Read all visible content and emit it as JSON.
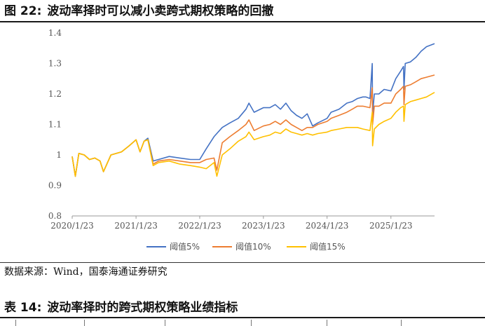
{
  "figure": {
    "number": "图 22:",
    "title": "波动率择时可以减小卖跨式期权策略的回撤"
  },
  "source": "数据来源：Wind，国泰海通证券研究",
  "table": {
    "number": "表 14:",
    "title": "波动率择时的跨式期权策略业绩指标"
  },
  "chart_data": {
    "type": "line",
    "x_ticks": [
      "2020/1/23",
      "2021/1/23",
      "2022/1/23",
      "2023/1/23",
      "2024/1/23",
      "2025/1/23"
    ],
    "y_ticks": [
      "0.8",
      "0.9",
      "1",
      "1.1",
      "1.2",
      "1.3",
      "1.4"
    ],
    "ylim": [
      0.8,
      1.4
    ],
    "xlim": [
      "2020/1/23",
      "2025/9/30"
    ],
    "grid": false,
    "legend_position": "bottom",
    "series": [
      {
        "name": "阈值5%",
        "color": "#4472C4",
        "points": [
          [
            "2020/1/23",
            0.995
          ],
          [
            "2020/2/10",
            0.93
          ],
          [
            "2020/3/1",
            1.005
          ],
          [
            "2020/4/1",
            1.0
          ],
          [
            "2020/5/1",
            0.985
          ],
          [
            "2020/6/1",
            0.99
          ],
          [
            "2020/7/1",
            0.98
          ],
          [
            "2020/7/20",
            0.945
          ],
          [
            "2020/9/1",
            1.0
          ],
          [
            "2020/11/1",
            1.01
          ],
          [
            "2020/12/15",
            1.03
          ],
          [
            "2021/1/23",
            1.05
          ],
          [
            "2021/2/15",
            1.01
          ],
          [
            "2021/3/10",
            1.045
          ],
          [
            "2021/4/1",
            1.055
          ],
          [
            "2021/5/1",
            0.98
          ],
          [
            "2021/6/1",
            0.985
          ],
          [
            "2021/8/1",
            0.995
          ],
          [
            "2021/10/1",
            0.99
          ],
          [
            "2021/12/1",
            0.985
          ],
          [
            "2022/1/23",
            0.985
          ],
          [
            "2022/3/1",
            1.02
          ],
          [
            "2022/4/15",
            1.06
          ],
          [
            "2022/6/1",
            1.09
          ],
          [
            "2022/7/15",
            1.105
          ],
          [
            "2022/9/1",
            1.12
          ],
          [
            "2022/10/15",
            1.15
          ],
          [
            "2022/11/1",
            1.17
          ],
          [
            "2022/12/1",
            1.14
          ],
          [
            "2023/1/23",
            1.155
          ],
          [
            "2023/3/1",
            1.155
          ],
          [
            "2023/4/1",
            1.165
          ],
          [
            "2023/5/1",
            1.15
          ],
          [
            "2023/6/1",
            1.17
          ],
          [
            "2023/7/1",
            1.145
          ],
          [
            "2023/8/1",
            1.13
          ],
          [
            "2023/9/1",
            1.12
          ],
          [
            "2023/10/1",
            1.135
          ],
          [
            "2023/11/1",
            1.095
          ],
          [
            "2023/12/1",
            1.105
          ],
          [
            "2024/1/23",
            1.12
          ],
          [
            "2024/2/15",
            1.14
          ],
          [
            "2024/4/1",
            1.15
          ],
          [
            "2024/5/15",
            1.17
          ],
          [
            "2024/6/15",
            1.175
          ],
          [
            "2024/7/15",
            1.185
          ],
          [
            "2024/8/15",
            1.19
          ],
          [
            "2024/9/1",
            1.19
          ],
          [
            "2024/9/25",
            1.185
          ],
          [
            "2024/10/8",
            1.3
          ],
          [
            "2024/10/10",
            1.135
          ],
          [
            "2024/10/20",
            1.2
          ],
          [
            "2024/11/15",
            1.2
          ],
          [
            "2024/12/15",
            1.215
          ],
          [
            "2025/1/23",
            1.21
          ],
          [
            "2025/2/20",
            1.25
          ],
          [
            "2025/3/20",
            1.275
          ],
          [
            "2025/4/5",
            1.29
          ],
          [
            "2025/4/8",
            1.215
          ],
          [
            "2025/4/15",
            1.3
          ],
          [
            "2025/5/15",
            1.305
          ],
          [
            "2025/6/15",
            1.32
          ],
          [
            "2025/7/15",
            1.34
          ],
          [
            "2025/8/15",
            1.355
          ],
          [
            "2025/9/30",
            1.365
          ]
        ]
      },
      {
        "name": "阈值10%",
        "color": "#ED7D31",
        "points": [
          [
            "2020/1/23",
            0.995
          ],
          [
            "2020/2/10",
            0.93
          ],
          [
            "2020/3/1",
            1.005
          ],
          [
            "2020/4/1",
            1.0
          ],
          [
            "2020/5/1",
            0.985
          ],
          [
            "2020/6/1",
            0.99
          ],
          [
            "2020/7/1",
            0.98
          ],
          [
            "2020/7/20",
            0.945
          ],
          [
            "2020/9/1",
            1.0
          ],
          [
            "2020/11/1",
            1.01
          ],
          [
            "2020/12/15",
            1.03
          ],
          [
            "2021/1/23",
            1.05
          ],
          [
            "2021/2/15",
            1.01
          ],
          [
            "2021/3/10",
            1.045
          ],
          [
            "2021/4/1",
            1.05
          ],
          [
            "2021/5/1",
            0.97
          ],
          [
            "2021/6/1",
            0.98
          ],
          [
            "2021/8/1",
            0.985
          ],
          [
            "2021/10/1",
            0.98
          ],
          [
            "2021/12/1",
            0.975
          ],
          [
            "2022/1/23",
            0.975
          ],
          [
            "2022/3/1",
            0.985
          ],
          [
            "2022/4/15",
            0.99
          ],
          [
            "2022/5/1",
            0.95
          ],
          [
            "2022/6/1",
            1.04
          ],
          [
            "2022/7/15",
            1.06
          ],
          [
            "2022/9/1",
            1.08
          ],
          [
            "2022/10/15",
            1.1
          ],
          [
            "2022/11/1",
            1.115
          ],
          [
            "2022/12/1",
            1.08
          ],
          [
            "2023/1/23",
            1.095
          ],
          [
            "2023/3/1",
            1.1
          ],
          [
            "2023/4/1",
            1.11
          ],
          [
            "2023/5/1",
            1.1
          ],
          [
            "2023/6/1",
            1.115
          ],
          [
            "2023/7/1",
            1.1
          ],
          [
            "2023/8/1",
            1.09
          ],
          [
            "2023/9/1",
            1.08
          ],
          [
            "2023/10/1",
            1.09
          ],
          [
            "2023/11/1",
            1.09
          ],
          [
            "2023/12/1",
            1.1
          ],
          [
            "2024/1/23",
            1.11
          ],
          [
            "2024/2/15",
            1.12
          ],
          [
            "2024/4/1",
            1.13
          ],
          [
            "2024/5/15",
            1.14
          ],
          [
            "2024/6/15",
            1.15
          ],
          [
            "2024/7/15",
            1.16
          ],
          [
            "2024/8/15",
            1.16
          ],
          [
            "2024/9/25",
            1.155
          ],
          [
            "2024/10/8",
            1.22
          ],
          [
            "2024/10/10",
            1.1
          ],
          [
            "2024/10/20",
            1.16
          ],
          [
            "2024/11/15",
            1.16
          ],
          [
            "2024/12/15",
            1.17
          ],
          [
            "2025/1/23",
            1.17
          ],
          [
            "2025/2/20",
            1.2
          ],
          [
            "2025/3/20",
            1.215
          ],
          [
            "2025/4/5",
            1.225
          ],
          [
            "2025/4/8",
            1.165
          ],
          [
            "2025/4/15",
            1.225
          ],
          [
            "2025/5/15",
            1.23
          ],
          [
            "2025/6/15",
            1.24
          ],
          [
            "2025/7/15",
            1.25
          ],
          [
            "2025/8/15",
            1.255
          ],
          [
            "2025/9/30",
            1.262
          ]
        ]
      },
      {
        "name": "阈值15%",
        "color": "#FFC000",
        "points": [
          [
            "2020/1/23",
            0.995
          ],
          [
            "2020/2/10",
            0.93
          ],
          [
            "2020/3/1",
            1.005
          ],
          [
            "2020/4/1",
            1.0
          ],
          [
            "2020/5/1",
            0.985
          ],
          [
            "2020/6/1",
            0.99
          ],
          [
            "2020/7/1",
            0.98
          ],
          [
            "2020/7/20",
            0.945
          ],
          [
            "2020/9/1",
            1.0
          ],
          [
            "2020/11/1",
            1.01
          ],
          [
            "2020/12/15",
            1.03
          ],
          [
            "2021/1/23",
            1.05
          ],
          [
            "2021/2/15",
            1.01
          ],
          [
            "2021/3/10",
            1.045
          ],
          [
            "2021/4/1",
            1.05
          ],
          [
            "2021/5/1",
            0.965
          ],
          [
            "2021/6/1",
            0.975
          ],
          [
            "2021/8/1",
            0.98
          ],
          [
            "2021/10/1",
            0.97
          ],
          [
            "2021/12/1",
            0.965
          ],
          [
            "2022/1/23",
            0.96
          ],
          [
            "2022/3/1",
            0.955
          ],
          [
            "2022/4/15",
            0.975
          ],
          [
            "2022/5/1",
            0.93
          ],
          [
            "2022/6/1",
            1.0
          ],
          [
            "2022/7/15",
            1.02
          ],
          [
            "2022/9/1",
            1.045
          ],
          [
            "2022/10/15",
            1.06
          ],
          [
            "2022/11/1",
            1.075
          ],
          [
            "2022/12/1",
            1.05
          ],
          [
            "2023/1/23",
            1.06
          ],
          [
            "2023/3/1",
            1.065
          ],
          [
            "2023/4/1",
            1.075
          ],
          [
            "2023/5/1",
            1.07
          ],
          [
            "2023/6/1",
            1.085
          ],
          [
            "2023/7/1",
            1.075
          ],
          [
            "2023/8/1",
            1.07
          ],
          [
            "2023/9/1",
            1.065
          ],
          [
            "2023/10/1",
            1.07
          ],
          [
            "2023/11/1",
            1.065
          ],
          [
            "2023/12/1",
            1.07
          ],
          [
            "2024/1/23",
            1.075
          ],
          [
            "2024/2/15",
            1.08
          ],
          [
            "2024/4/1",
            1.085
          ],
          [
            "2024/5/15",
            1.09
          ],
          [
            "2024/6/15",
            1.09
          ],
          [
            "2024/7/15",
            1.09
          ],
          [
            "2024/8/15",
            1.085
          ],
          [
            "2024/9/25",
            1.08
          ],
          [
            "2024/10/8",
            1.14
          ],
          [
            "2024/10/10",
            1.03
          ],
          [
            "2024/10/20",
            1.085
          ],
          [
            "2024/11/15",
            1.1
          ],
          [
            "2024/12/15",
            1.11
          ],
          [
            "2025/1/23",
            1.12
          ],
          [
            "2025/2/20",
            1.14
          ],
          [
            "2025/3/20",
            1.155
          ],
          [
            "2025/4/5",
            1.16
          ],
          [
            "2025/4/8",
            1.11
          ],
          [
            "2025/4/15",
            1.165
          ],
          [
            "2025/5/15",
            1.175
          ],
          [
            "2025/6/15",
            1.18
          ],
          [
            "2025/7/15",
            1.185
          ],
          [
            "2025/8/15",
            1.19
          ],
          [
            "2025/9/30",
            1.205
          ]
        ]
      }
    ]
  }
}
